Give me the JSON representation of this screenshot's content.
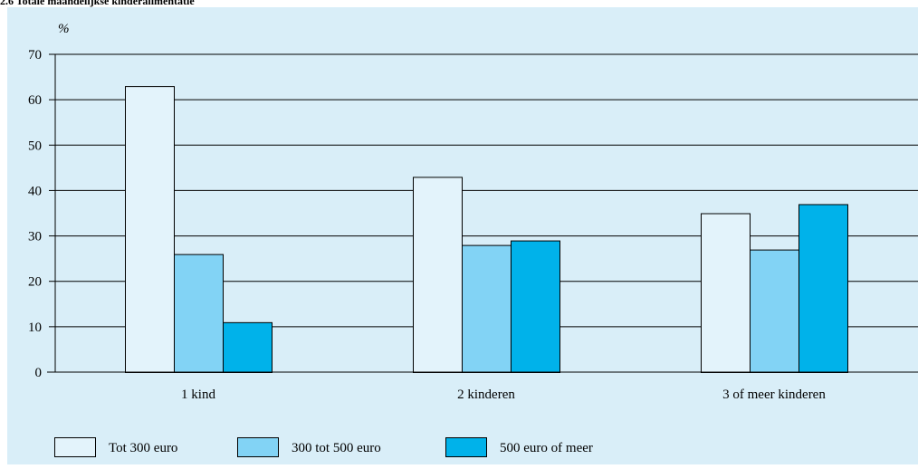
{
  "chart_data": {
    "type": "bar",
    "title": "2.6 Totale maandelijkse kinderalimentatie",
    "ylabel": "%",
    "xlabel": "",
    "ylim": [
      0,
      70
    ],
    "yticks": [
      0,
      10,
      20,
      30,
      40,
      50,
      60,
      70
    ],
    "grid": true,
    "legend_position": "bottom",
    "categories": [
      "1 kind",
      "2 kinderen",
      "3 of meer kinderen"
    ],
    "series": [
      {
        "name": "Tot 300 euro",
        "values": [
          63,
          43,
          35
        ],
        "color": "#e3f3fb"
      },
      {
        "name": "300 tot 500 euro",
        "values": [
          26,
          28,
          27
        ],
        "color": "#82d3f5"
      },
      {
        "name": "500 euro of meer",
        "values": [
          11,
          29,
          37
        ],
        "color": "#00b2ea"
      }
    ]
  }
}
